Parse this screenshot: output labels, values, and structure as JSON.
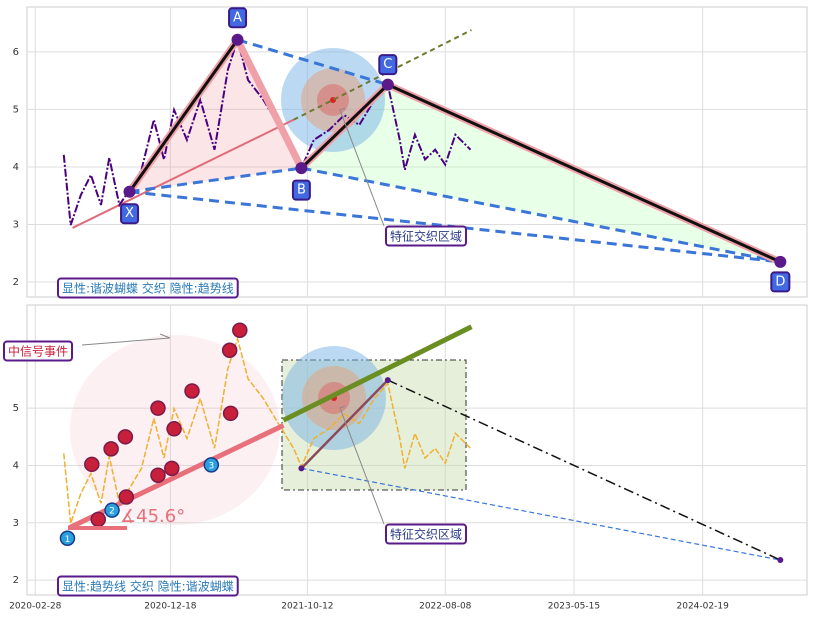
{
  "chart_data": [
    {
      "type": "line",
      "price": {
        "color": "#4b0082",
        "x": [
          "2020-04-30",
          "2020-05-15",
          "2020-06-06",
          "2020-06-28",
          "2020-07-20",
          "2020-08-07",
          "2020-08-29",
          "2020-09-20",
          "2020-10-16",
          "2020-11-12",
          "2020-12-04",
          "2020-12-26",
          "2021-01-23",
          "2021-02-21",
          "2021-03-24",
          "2021-04-22",
          "2021-05-13",
          "2021-06-05",
          "2021-07-08",
          "2021-08-10",
          "2021-09-12",
          "2021-09-29",
          "2021-10-26",
          "2021-11-28",
          "2021-12-31",
          "2022-02-02",
          "2022-03-07",
          "2022-04-05",
          "2022-05-01",
          "2022-05-12",
          "2022-06-03",
          "2022-06-25",
          "2022-07-17",
          "2022-08-08",
          "2022-08-30",
          "2022-10-02"
        ],
        "values": [
          4.21,
          2.99,
          3.51,
          3.86,
          3.34,
          4.16,
          3.34,
          3.6,
          3.95,
          4.82,
          4.13,
          4.99,
          4.47,
          5.17,
          4.3,
          5.69,
          6.21,
          5.51,
          5.17,
          4.73,
          4.3,
          3.98,
          4.47,
          4.64,
          4.9,
          4.73,
          5.17,
          5.43,
          4.47,
          3.95,
          4.56,
          4.13,
          4.3,
          4.04,
          4.56,
          4.3
        ]
      },
      "pattern": {
        "labels": [
          "X",
          "A",
          "B",
          "C",
          "D"
        ],
        "x": [
          "2020-09-20",
          "2021-05-13",
          "2021-09-29",
          "2022-04-05",
          "2024-08-06"
        ],
        "values": [
          3.57,
          6.21,
          3.98,
          5.43,
          2.35
        ]
      },
      "trend_lines": [
        {
          "x": [
            "2020-05-19",
            "2021-09-12"
          ],
          "values": [
            2.94,
            4.82
          ],
          "color": "#e06c7a"
        },
        {
          "x": [
            "2021-09-12",
            "2022-10-04"
          ],
          "values": [
            4.82,
            6.38
          ],
          "color": "#6b7a2e"
        }
      ],
      "ylim": [
        1.74,
        6.78
      ],
      "yticks": [
        2,
        3,
        4,
        5,
        6
      ],
      "xlim": [
        "2020-02-10",
        "2024-10-03"
      ],
      "grid": true,
      "zone_label": "特征交织区域",
      "caption": "显性:谐波蝴蝶 交织 隐性:趋势线"
    },
    {
      "type": "line",
      "price": {
        "color": "#f0b030",
        "x": [
          "2020-04-30",
          "2020-05-15",
          "2020-06-06",
          "2020-06-28",
          "2020-07-20",
          "2020-08-07",
          "2020-08-29",
          "2020-09-20",
          "2020-10-16",
          "2020-11-12",
          "2020-12-04",
          "2020-12-26",
          "2021-01-23",
          "2021-02-21",
          "2021-03-24",
          "2021-04-22",
          "2021-05-13",
          "2021-06-05",
          "2021-07-08",
          "2021-08-10",
          "2021-09-12",
          "2021-09-29",
          "2021-10-26",
          "2021-11-28",
          "2021-12-31",
          "2022-02-02",
          "2022-03-07",
          "2022-04-05",
          "2022-05-01",
          "2022-05-12",
          "2022-06-03",
          "2022-06-25",
          "2022-07-17",
          "2022-08-08",
          "2022-08-30",
          "2022-10-02"
        ],
        "values": [
          4.21,
          2.99,
          3.51,
          3.86,
          3.34,
          4.16,
          3.34,
          3.6,
          3.95,
          4.82,
          4.13,
          4.99,
          4.47,
          5.17,
          4.3,
          5.69,
          6.21,
          5.51,
          5.17,
          4.73,
          4.3,
          3.98,
          4.47,
          4.64,
          4.9,
          4.73,
          5.17,
          5.43,
          4.47,
          3.95,
          4.56,
          4.13,
          4.3,
          4.04,
          4.56,
          4.3
        ]
      },
      "pattern": {
        "x": [
          "2021-09-29",
          "2022-04-05",
          "2024-08-06"
        ],
        "values": [
          3.95,
          5.49,
          2.35
        ]
      },
      "trend_lines": [
        {
          "x": [
            "2020-05-11",
            "2021-08-21"
          ],
          "values": [
            2.91,
            4.7
          ],
          "color": "#e8707a"
        },
        {
          "x": [
            "2021-08-21",
            "2022-10-04"
          ],
          "values": [
            4.79,
            6.42
          ],
          "color": "#6b8e23"
        }
      ],
      "wave_points": {
        "x": [
          "2020-06-30",
          "2020-07-14",
          "2020-08-11",
          "2020-09-11",
          "2020-09-13",
          "2020-11-21",
          "2020-11-21",
          "2020-12-21",
          "2020-12-26",
          "2021-02-03",
          "2021-04-26",
          "2021-04-28",
          "2021-05-18"
        ],
        "values": [
          4.02,
          3.06,
          4.29,
          4.5,
          3.45,
          5.0,
          3.83,
          3.95,
          4.64,
          5.3,
          6.01,
          4.91,
          6.36
        ]
      },
      "numbered_points": {
        "labels": [
          "1",
          "2",
          "3"
        ],
        "x": [
          "2020-05-08",
          "2020-08-13",
          "2021-03-17"
        ],
        "values": [
          2.73,
          3.22,
          4.01
        ]
      },
      "ylim": [
        1.74,
        6.8
      ],
      "yticks": [
        2,
        3,
        4,
        5
      ],
      "xlim": [
        "2020-02-10",
        "2024-10-03"
      ],
      "xticks": [
        "2020-02-28",
        "2020-12-18",
        "2021-10-12",
        "2022-08-08",
        "2023-05-15",
        "2024-02-19"
      ],
      "grid": true,
      "angle_label": "∡45.6°",
      "event_label": "中信号事件",
      "zone_label": "特征交织区域",
      "caption": "显性:趋势线 交织 隐性:谐波蝴蝶"
    }
  ]
}
